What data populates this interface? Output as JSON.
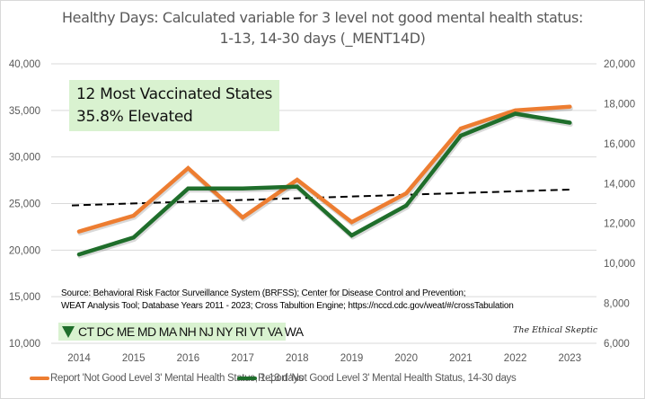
{
  "colors": {
    "series_1": "#ed7d31",
    "series_2": "#1f6e2b",
    "trend": "#000000",
    "gridline": "#d9d9d9",
    "callout_bg": "#d9f2d0"
  },
  "callout": {
    "line1": "12 Most Vaccinated States",
    "line2": "35.8% Elevated"
  },
  "source": {
    "line1": "Source: Behavioral Risk Factor Surveillance System (BRFSS); Center for Disease Control and Prevention;",
    "line2": "WEAT Analysis Tool; Database Years 2011 - 2023;  Cross Tabultion Engine; https://nccd.cdc.gov/weat/#/crossTabulation"
  },
  "states_label": "CT DC  ME MD MA NH NJ NY RI VT VA WA",
  "states_icon": "down-triangle-icon",
  "watermark": "The Ethical Skeptic",
  "chart_data": {
    "type": "line",
    "title": "Healthy Days: Calculated variable for 3 level not good mental health status:",
    "subtitle": "1-13, 14-30 days (_MENT14D)",
    "xlabel": "",
    "ylabel": "",
    "x": [
      "2014",
      "2015",
      "2016",
      "2017",
      "2018",
      "2019",
      "2020",
      "2021",
      "2022",
      "2023"
    ],
    "y_left": {
      "min": 10000,
      "max": 40000,
      "ticks": [
        "10,000",
        "15,000",
        "20,000",
        "25,000",
        "30,000",
        "35,000",
        "40,000"
      ],
      "tick_values": [
        10000,
        15000,
        20000,
        25000,
        30000,
        35000,
        40000
      ]
    },
    "y_right": {
      "min": 6000,
      "max": 20000,
      "ticks": [
        "6,000",
        "8,000",
        "10,000",
        "12,000",
        "14,000",
        "16,000",
        "18,000",
        "20,000"
      ],
      "tick_values": [
        6000,
        8000,
        10000,
        12000,
        14000,
        16000,
        18000,
        20000
      ]
    },
    "grid": true,
    "legend_position": "bottom",
    "series": [
      {
        "name": "Report 'Not Good Level 3' Mental Health Status, 1-13 days",
        "axis": "left",
        "values": [
          22000,
          23700,
          28800,
          23500,
          27550,
          23000,
          26100,
          33050,
          35000,
          35400
        ]
      },
      {
        "name": "Report 'Not Good Level 3' Mental Health Status, 14-30 days",
        "axis": "right",
        "values": [
          10450,
          11300,
          13750,
          13750,
          13850,
          11400,
          12900,
          16400,
          17500,
          17050
        ]
      }
    ],
    "trendline": {
      "series": "Report 'Not Good Level 3' Mental Health Status, 1-13 days",
      "axis": "left",
      "style": "dashed",
      "start": 24800,
      "end": 26500
    }
  }
}
